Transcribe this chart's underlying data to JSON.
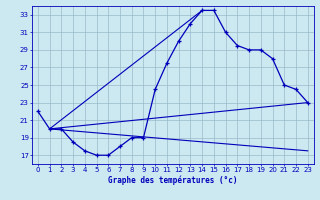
{
  "title": "Graphe des températures (°c)",
  "hours": [
    0,
    1,
    2,
    3,
    4,
    5,
    6,
    7,
    8,
    9,
    10,
    11,
    12,
    13,
    14,
    15,
    16,
    17,
    18,
    19,
    20,
    21,
    22,
    23
  ],
  "temp_curve": [
    22.0,
    20.0,
    20.0,
    18.5,
    17.5,
    17.0,
    17.0,
    18.0,
    19.0,
    19.0,
    24.5,
    27.5,
    30.0,
    32.0,
    33.5,
    33.5,
    31.0,
    29.5,
    29.0,
    29.0,
    28.0,
    25.0,
    24.5,
    23.0
  ],
  "ref_line1": {
    "x": [
      1,
      23
    ],
    "y": [
      20.0,
      23.0
    ]
  },
  "ref_line2": {
    "x": [
      1,
      23
    ],
    "y": [
      20.0,
      17.5
    ]
  },
  "ref_line3": {
    "x": [
      1,
      23
    ],
    "y": [
      20.0,
      23.0
    ]
  },
  "line_color": "#0000bb",
  "bg_color": "#cce8f0",
  "grid_color": "#99bbcc",
  "ylim": [
    16,
    34
  ],
  "xlim": [
    -0.5,
    23.5
  ],
  "yticks": [
    17,
    19,
    21,
    23,
    25,
    27,
    29,
    31,
    33
  ],
  "xticks": [
    0,
    1,
    2,
    3,
    4,
    5,
    6,
    7,
    8,
    9,
    10,
    11,
    12,
    13,
    14,
    15,
    16,
    17,
    18,
    19,
    20,
    21,
    22,
    23
  ]
}
